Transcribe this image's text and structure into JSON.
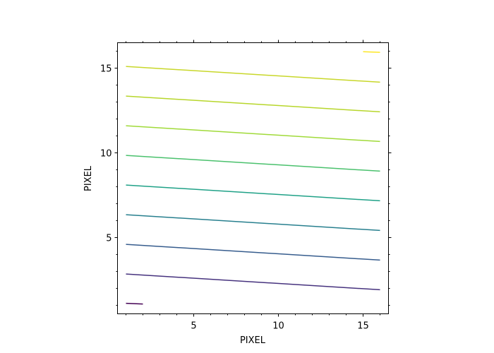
{
  "chart_data": {
    "type": "line",
    "title": "",
    "xlabel": "PIXEL",
    "ylabel": "PIXEL",
    "xlim": [
      0.5,
      16.5
    ],
    "ylim": [
      0.5,
      16.5
    ],
    "xticks": [
      5,
      10,
      15
    ],
    "yticks": [
      5,
      10,
      15
    ],
    "x_minor_step": 1,
    "y_minor_step": 1,
    "grid": false,
    "colormap": "viridis",
    "series": [
      {
        "color": "#440154",
        "x": [
          1.0,
          2.0
        ],
        "y": [
          1.12,
          1.08
        ]
      },
      {
        "color": "#46327e",
        "x": [
          1.0,
          16.0
        ],
        "y": [
          2.85,
          1.92
        ]
      },
      {
        "color": "#365c8d",
        "x": [
          1.0,
          16.0
        ],
        "y": [
          4.6,
          3.67
        ]
      },
      {
        "color": "#277f8e",
        "x": [
          1.0,
          16.0
        ],
        "y": [
          6.35,
          5.42
        ]
      },
      {
        "color": "#1fa187",
        "x": [
          1.0,
          16.0
        ],
        "y": [
          8.1,
          7.17
        ]
      },
      {
        "color": "#4ac16d",
        "x": [
          1.0,
          16.0
        ],
        "y": [
          9.85,
          8.92
        ]
      },
      {
        "color": "#a0da39",
        "x": [
          1.0,
          16.0
        ],
        "y": [
          11.6,
          10.67
        ]
      },
      {
        "color": "#b7d62b",
        "x": [
          1.0,
          16.0
        ],
        "y": [
          13.35,
          12.42
        ]
      },
      {
        "color": "#c8d72a",
        "x": [
          1.0,
          16.0
        ],
        "y": [
          15.1,
          14.17
        ]
      },
      {
        "color": "#fde725",
        "x": [
          15.0,
          16.0
        ],
        "y": [
          15.97,
          15.93
        ]
      }
    ]
  }
}
